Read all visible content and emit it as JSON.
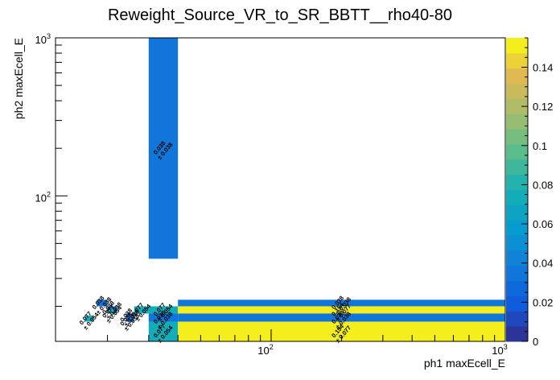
{
  "chart_data": {
    "type": "heatmap",
    "title": "Reweight_Source_VR_to_SR_BBTT__rho40-80",
    "xlabel": "ph1 maxEcell_E",
    "ylabel": "ph2 maxEcell_E",
    "x_scale": "log",
    "y_scale": "log",
    "xlim": [
      12,
      1000
    ],
    "ylim": [
      12,
      1000
    ],
    "x_tick_labels": [
      {
        "base": "10",
        "exp": "2",
        "value": 100
      },
      {
        "base": "10",
        "exp": "3",
        "value": 1000
      }
    ],
    "y_tick_labels": [
      {
        "base": "10",
        "exp": "2",
        "value": 100
      },
      {
        "base": "10",
        "exp": "3",
        "value": 1000
      }
    ],
    "colorbar": {
      "min": 0,
      "max": 0.155,
      "tick_labels": [
        "0",
        "0.02",
        "0.04",
        "0.06",
        "0.08",
        "0.1",
        "0.12",
        "0.14"
      ],
      "tick_values": [
        0,
        0.02,
        0.04,
        0.06,
        0.08,
        0.1,
        0.12,
        0.14
      ],
      "palette": "kBird"
    },
    "cells": [
      {
        "x0": 16,
        "x1": 17.5,
        "y0": 16,
        "y1": 17.5,
        "value": 0.077,
        "error": 0.054,
        "label": "0.077",
        "err_label": "± 0.054"
      },
      {
        "x0": 18,
        "x1": 20,
        "y0": 20,
        "y1": 22,
        "value": 0.038,
        "error": 0.038,
        "label": "0.038",
        "err_label": "± 0.038"
      },
      {
        "x0": 20,
        "x1": 22,
        "y0": 19,
        "y1": 20,
        "value": 0.038,
        "error": 0.038,
        "label": "0.038",
        "err_label": "± 0.038"
      },
      {
        "x0": 20,
        "x1": 22,
        "y0": 18,
        "y1": 19,
        "value": 0.077,
        "error": 0.054,
        "label": "0.077",
        "err_label": "± 0.054"
      },
      {
        "x0": 24,
        "x1": 26,
        "y0": 17,
        "y1": 18,
        "value": 0.038,
        "error": 0.038,
        "label": "0.038",
        "err_label": "± 0.038"
      },
      {
        "x0": 24,
        "x1": 26,
        "y0": 16,
        "y1": 17,
        "value": 0.038,
        "error": 0.038,
        "label": "0.038",
        "err_label": "± 0.038"
      },
      {
        "x0": 26,
        "x1": 30,
        "y0": 18,
        "y1": 20,
        "value": 0.077,
        "error": 0.054,
        "label": "0.077",
        "err_label": "± 0.054"
      },
      {
        "x0": 30,
        "x1": 40,
        "y0": 18,
        "y1": 20,
        "value": 0.077,
        "error": 0.054,
        "label": "0.077",
        "err_label": "± 0.054"
      },
      {
        "x0": 30,
        "x1": 40,
        "y0": 16,
        "y1": 18,
        "value": 0.038,
        "error": 0.038,
        "label": "0.038",
        "err_label": "± 0.038"
      },
      {
        "x0": 30,
        "x1": 40,
        "y0": 12,
        "y1": 16,
        "value": 0.077,
        "error": 0.054,
        "label": "0.077",
        "err_label": "± 0.054"
      },
      {
        "x0": 30,
        "x1": 40,
        "y0": 40,
        "y1": 1000,
        "value": 0.038,
        "error": 0.038,
        "label": "0.038",
        "err_label": "± 0.038"
      },
      {
        "x0": 40,
        "x1": 1000,
        "y0": 20,
        "y1": 22,
        "value": 0.038,
        "error": 0.038,
        "label": "0.038",
        "err_label": "± 0.038"
      },
      {
        "x0": 40,
        "x1": 1000,
        "y0": 18,
        "y1": 20,
        "value": 0.154,
        "error": 0.077,
        "label": "0.154",
        "err_label": "± 0.077"
      },
      {
        "x0": 40,
        "x1": 1000,
        "y0": 16,
        "y1": 18,
        "value": 0.038,
        "error": 0.038,
        "label": "0.038",
        "err_label": "± 0.038"
      },
      {
        "x0": 40,
        "x1": 1000,
        "y0": 12,
        "y1": 16,
        "value": 0.154,
        "error": 0.077,
        "label": "0.154",
        "err_label": "± 0.077"
      }
    ]
  }
}
